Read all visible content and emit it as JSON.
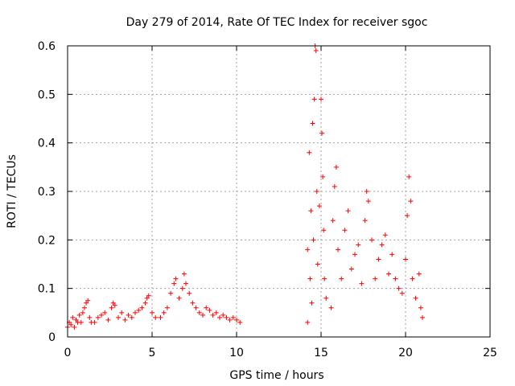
{
  "chart_data": {
    "type": "scatter",
    "title": "Day 279 of 2014, Rate Of TEC Index for receiver sgoc",
    "xlabel": "GPS time / hours",
    "ylabel": "ROTI / TECUs",
    "xlim": [
      0,
      25
    ],
    "ylim": [
      0,
      0.6
    ],
    "xticks": [
      0,
      5,
      10,
      15,
      20,
      25
    ],
    "xtick_labels": [
      "0",
      "5",
      "10",
      "15",
      "20",
      "25"
    ],
    "yticks": [
      0,
      0.1,
      0.2,
      0.3,
      0.4,
      0.5,
      0.6
    ],
    "ytick_labels": [
      "0",
      "0.1",
      "0.2",
      "0.3",
      "0.4",
      "0.5",
      "0.6"
    ],
    "grid": true,
    "marker": "+",
    "color": "#ff0000",
    "series": [
      {
        "name": "ROTI",
        "points": [
          [
            0.0,
            0.02
          ],
          [
            0.1,
            0.03
          ],
          [
            0.2,
            0.025
          ],
          [
            0.3,
            0.04
          ],
          [
            0.4,
            0.02
          ],
          [
            0.5,
            0.035
          ],
          [
            0.6,
            0.03
          ],
          [
            0.7,
            0.045
          ],
          [
            0.8,
            0.03
          ],
          [
            0.9,
            0.05
          ],
          [
            1.0,
            0.06
          ],
          [
            1.1,
            0.07
          ],
          [
            1.2,
            0.075
          ],
          [
            1.3,
            0.04
          ],
          [
            1.4,
            0.03
          ],
          [
            1.6,
            0.03
          ],
          [
            1.8,
            0.04
          ],
          [
            2.0,
            0.045
          ],
          [
            2.2,
            0.05
          ],
          [
            2.4,
            0.035
          ],
          [
            2.6,
            0.06
          ],
          [
            2.7,
            0.07
          ],
          [
            2.8,
            0.065
          ],
          [
            3.0,
            0.04
          ],
          [
            3.2,
            0.05
          ],
          [
            3.4,
            0.035
          ],
          [
            3.6,
            0.045
          ],
          [
            3.8,
            0.04
          ],
          [
            4.0,
            0.05
          ],
          [
            4.2,
            0.055
          ],
          [
            4.4,
            0.06
          ],
          [
            4.6,
            0.07
          ],
          [
            4.7,
            0.08
          ],
          [
            4.8,
            0.085
          ],
          [
            5.0,
            0.05
          ],
          [
            5.2,
            0.04
          ],
          [
            5.5,
            0.04
          ],
          [
            5.7,
            0.05
          ],
          [
            5.9,
            0.06
          ],
          [
            6.1,
            0.09
          ],
          [
            6.3,
            0.11
          ],
          [
            6.4,
            0.12
          ],
          [
            6.6,
            0.08
          ],
          [
            6.8,
            0.1
          ],
          [
            6.9,
            0.13
          ],
          [
            7.0,
            0.11
          ],
          [
            7.2,
            0.09
          ],
          [
            7.4,
            0.07
          ],
          [
            7.6,
            0.06
          ],
          [
            7.8,
            0.05
          ],
          [
            8.0,
            0.045
          ],
          [
            8.2,
            0.06
          ],
          [
            8.4,
            0.055
          ],
          [
            8.6,
            0.045
          ],
          [
            8.8,
            0.05
          ],
          [
            9.0,
            0.04
          ],
          [
            9.2,
            0.045
          ],
          [
            9.4,
            0.04
          ],
          [
            9.6,
            0.035
          ],
          [
            9.8,
            0.04
          ],
          [
            10.0,
            0.035
          ],
          [
            10.2,
            0.03
          ],
          [
            14.2,
            0.03
          ],
          [
            14.2,
            0.18
          ],
          [
            14.3,
            0.38
          ],
          [
            14.35,
            0.12
          ],
          [
            14.4,
            0.26
          ],
          [
            14.45,
            0.07
          ],
          [
            14.5,
            0.44
          ],
          [
            14.55,
            0.2
          ],
          [
            14.6,
            0.49
          ],
          [
            14.65,
            0.6
          ],
          [
            14.7,
            0.59
          ],
          [
            14.75,
            0.3
          ],
          [
            14.8,
            0.15
          ],
          [
            14.9,
            0.27
          ],
          [
            15.0,
            0.49
          ],
          [
            15.05,
            0.42
          ],
          [
            15.1,
            0.33
          ],
          [
            15.15,
            0.22
          ],
          [
            15.2,
            0.12
          ],
          [
            15.3,
            0.08
          ],
          [
            15.6,
            0.06
          ],
          [
            15.7,
            0.24
          ],
          [
            15.8,
            0.31
          ],
          [
            15.9,
            0.35
          ],
          [
            16.0,
            0.18
          ],
          [
            16.2,
            0.12
          ],
          [
            16.4,
            0.22
          ],
          [
            16.6,
            0.26
          ],
          [
            16.8,
            0.14
          ],
          [
            17.0,
            0.17
          ],
          [
            17.2,
            0.19
          ],
          [
            17.4,
            0.11
          ],
          [
            17.6,
            0.24
          ],
          [
            17.7,
            0.3
          ],
          [
            17.8,
            0.28
          ],
          [
            18.0,
            0.2
          ],
          [
            18.2,
            0.12
          ],
          [
            18.4,
            0.16
          ],
          [
            18.6,
            0.19
          ],
          [
            18.8,
            0.21
          ],
          [
            19.0,
            0.13
          ],
          [
            19.2,
            0.17
          ],
          [
            19.4,
            0.12
          ],
          [
            19.6,
            0.1
          ],
          [
            19.8,
            0.09
          ],
          [
            20.0,
            0.16
          ],
          [
            20.1,
            0.25
          ],
          [
            20.2,
            0.33
          ],
          [
            20.3,
            0.28
          ],
          [
            20.4,
            0.12
          ],
          [
            20.6,
            0.08
          ],
          [
            20.8,
            0.13
          ],
          [
            20.9,
            0.06
          ],
          [
            21.0,
            0.04
          ]
        ]
      }
    ]
  }
}
